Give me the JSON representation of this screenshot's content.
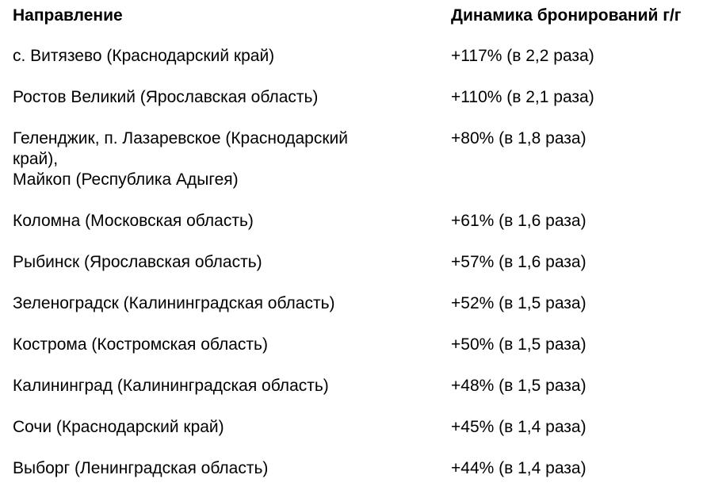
{
  "headers": {
    "direction": "Направление",
    "dynamics": "Динамика бронирований г/г"
  },
  "rows": [
    {
      "direction": [
        "с. Витязево (Краснодарский край)"
      ],
      "dynamics": "+117% (в 2,2 раза)"
    },
    {
      "direction": [
        "Ростов Великий (Ярославская область)"
      ],
      "dynamics": "+110% (в 2,1 раза)"
    },
    {
      "direction": [
        "Геленджик, п. Лазаревское (Краснодарский",
        "край),",
        "Майкоп (Республика Адыгея)"
      ],
      "dynamics": "+80% (в 1,8 раза)"
    },
    {
      "direction": [
        "Коломна (Московская область)"
      ],
      "dynamics": "+61% (в 1,6 раза)"
    },
    {
      "direction": [
        "Рыбинск (Ярославская область)"
      ],
      "dynamics": "+57% (в 1,6 раза)"
    },
    {
      "direction": [
        "Зеленоградск (Калининградская область)"
      ],
      "dynamics": "+52% (в 1,5 раза)"
    },
    {
      "direction": [
        "Кострома (Костромская область)"
      ],
      "dynamics": "+50% (в 1,5 раза)"
    },
    {
      "direction": [
        "Калининград (Калининградская область)"
      ],
      "dynamics": "+48% (в 1,5 раза)"
    },
    {
      "direction": [
        "Сочи (Краснодарский край)"
      ],
      "dynamics": "+45% (в 1,4 раза)"
    },
    {
      "direction": [
        "Выборг (Ленинградская область)"
      ],
      "dynamics": "+44% (в 1,4 раза)"
    }
  ]
}
